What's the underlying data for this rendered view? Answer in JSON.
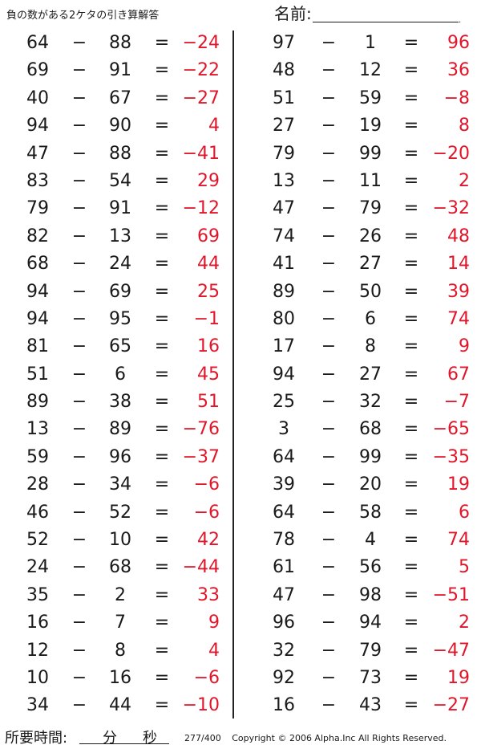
{
  "title": "負の数がある2ケタの引き算解答",
  "name_label": "名前:",
  "name_dot": ".",
  "operator": "−",
  "equals": "=",
  "left_problems": [
    {
      "a": "64",
      "b": "88",
      "ans": "−24"
    },
    {
      "a": "69",
      "b": "91",
      "ans": "−22"
    },
    {
      "a": "40",
      "b": "67",
      "ans": "−27"
    },
    {
      "a": "94",
      "b": "90",
      "ans": "4"
    },
    {
      "a": "47",
      "b": "88",
      "ans": "−41"
    },
    {
      "a": "83",
      "b": "54",
      "ans": "29"
    },
    {
      "a": "79",
      "b": "91",
      "ans": "−12"
    },
    {
      "a": "82",
      "b": "13",
      "ans": "69"
    },
    {
      "a": "68",
      "b": "24",
      "ans": "44"
    },
    {
      "a": "94",
      "b": "69",
      "ans": "25"
    },
    {
      "a": "94",
      "b": "95",
      "ans": "−1"
    },
    {
      "a": "81",
      "b": "65",
      "ans": "16"
    },
    {
      "a": "51",
      "b": "6",
      "ans": "45"
    },
    {
      "a": "89",
      "b": "38",
      "ans": "51"
    },
    {
      "a": "13",
      "b": "89",
      "ans": "−76"
    },
    {
      "a": "59",
      "b": "96",
      "ans": "−37"
    },
    {
      "a": "28",
      "b": "34",
      "ans": "−6"
    },
    {
      "a": "46",
      "b": "52",
      "ans": "−6"
    },
    {
      "a": "52",
      "b": "10",
      "ans": "42"
    },
    {
      "a": "24",
      "b": "68",
      "ans": "−44"
    },
    {
      "a": "35",
      "b": "2",
      "ans": "33"
    },
    {
      "a": "16",
      "b": "7",
      "ans": "9"
    },
    {
      "a": "12",
      "b": "8",
      "ans": "4"
    },
    {
      "a": "10",
      "b": "16",
      "ans": "−6"
    },
    {
      "a": "34",
      "b": "44",
      "ans": "−10"
    }
  ],
  "right_problems": [
    {
      "a": "97",
      "b": "1",
      "ans": "96"
    },
    {
      "a": "48",
      "b": "12",
      "ans": "36"
    },
    {
      "a": "51",
      "b": "59",
      "ans": "−8"
    },
    {
      "a": "27",
      "b": "19",
      "ans": "8"
    },
    {
      "a": "79",
      "b": "99",
      "ans": "−20"
    },
    {
      "a": "13",
      "b": "11",
      "ans": "2"
    },
    {
      "a": "47",
      "b": "79",
      "ans": "−32"
    },
    {
      "a": "74",
      "b": "26",
      "ans": "48"
    },
    {
      "a": "41",
      "b": "27",
      "ans": "14"
    },
    {
      "a": "89",
      "b": "50",
      "ans": "39"
    },
    {
      "a": "80",
      "b": "6",
      "ans": "74"
    },
    {
      "a": "17",
      "b": "8",
      "ans": "9"
    },
    {
      "a": "94",
      "b": "27",
      "ans": "67"
    },
    {
      "a": "25",
      "b": "32",
      "ans": "−7"
    },
    {
      "a": "3",
      "b": "68",
      "ans": "−65"
    },
    {
      "a": "64",
      "b": "99",
      "ans": "−35"
    },
    {
      "a": "39",
      "b": "20",
      "ans": "19"
    },
    {
      "a": "64",
      "b": "58",
      "ans": "6"
    },
    {
      "a": "78",
      "b": "4",
      "ans": "74"
    },
    {
      "a": "61",
      "b": "56",
      "ans": "5"
    },
    {
      "a": "47",
      "b": "98",
      "ans": "−51"
    },
    {
      "a": "96",
      "b": "94",
      "ans": "2"
    },
    {
      "a": "32",
      "b": "79",
      "ans": "−47"
    },
    {
      "a": "92",
      "b": "73",
      "ans": "19"
    },
    {
      "a": "16",
      "b": "43",
      "ans": "−27"
    }
  ],
  "footer": {
    "time_label": "所要時間:",
    "minutes_unit": "分",
    "seconds_unit": "秒",
    "page": "277/400",
    "copyright": "Copyright © 2006 Alpha.Inc All Rights Reserved."
  },
  "colors": {
    "answer": "#e0162b",
    "text": "#1a1a1a"
  }
}
